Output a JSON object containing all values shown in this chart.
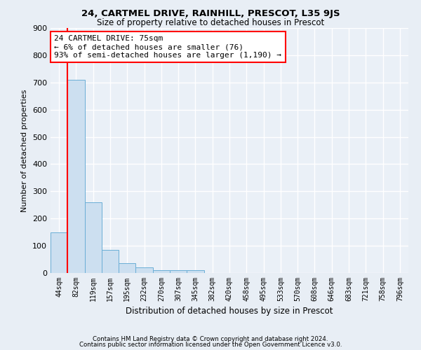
{
  "title1": "24, CARTMEL DRIVE, RAINHILL, PRESCOT, L35 9JS",
  "title2": "Size of property relative to detached houses in Prescot",
  "xlabel": "Distribution of detached houses by size in Prescot",
  "ylabel": "Number of detached properties",
  "categories": [
    "44sqm",
    "82sqm",
    "119sqm",
    "157sqm",
    "195sqm",
    "232sqm",
    "270sqm",
    "307sqm",
    "345sqm",
    "382sqm",
    "420sqm",
    "458sqm",
    "495sqm",
    "533sqm",
    "570sqm",
    "608sqm",
    "646sqm",
    "683sqm",
    "721sqm",
    "758sqm",
    "796sqm"
  ],
  "values": [
    148,
    710,
    260,
    85,
    35,
    20,
    11,
    11,
    10,
    0,
    0,
    0,
    0,
    0,
    0,
    0,
    0,
    0,
    0,
    0,
    0
  ],
  "bar_color": "#ccdff0",
  "bar_edge_color": "#6aaed6",
  "annotation_text": "24 CARTMEL DRIVE: 75sqm\n← 6% of detached houses are smaller (76)\n93% of semi-detached houses are larger (1,190) →",
  "annotation_box_color": "white",
  "annotation_box_edge_color": "red",
  "subject_line_color": "red",
  "ylim": [
    0,
    900
  ],
  "yticks": [
    0,
    100,
    200,
    300,
    400,
    500,
    600,
    700,
    800,
    900
  ],
  "footer1": "Contains HM Land Registry data © Crown copyright and database right 2024.",
  "footer2": "Contains public sector information licensed under the Open Government Licence v3.0.",
  "bg_color": "#e8eef5",
  "plot_bg_color": "#eaf0f7",
  "grid_color": "white"
}
